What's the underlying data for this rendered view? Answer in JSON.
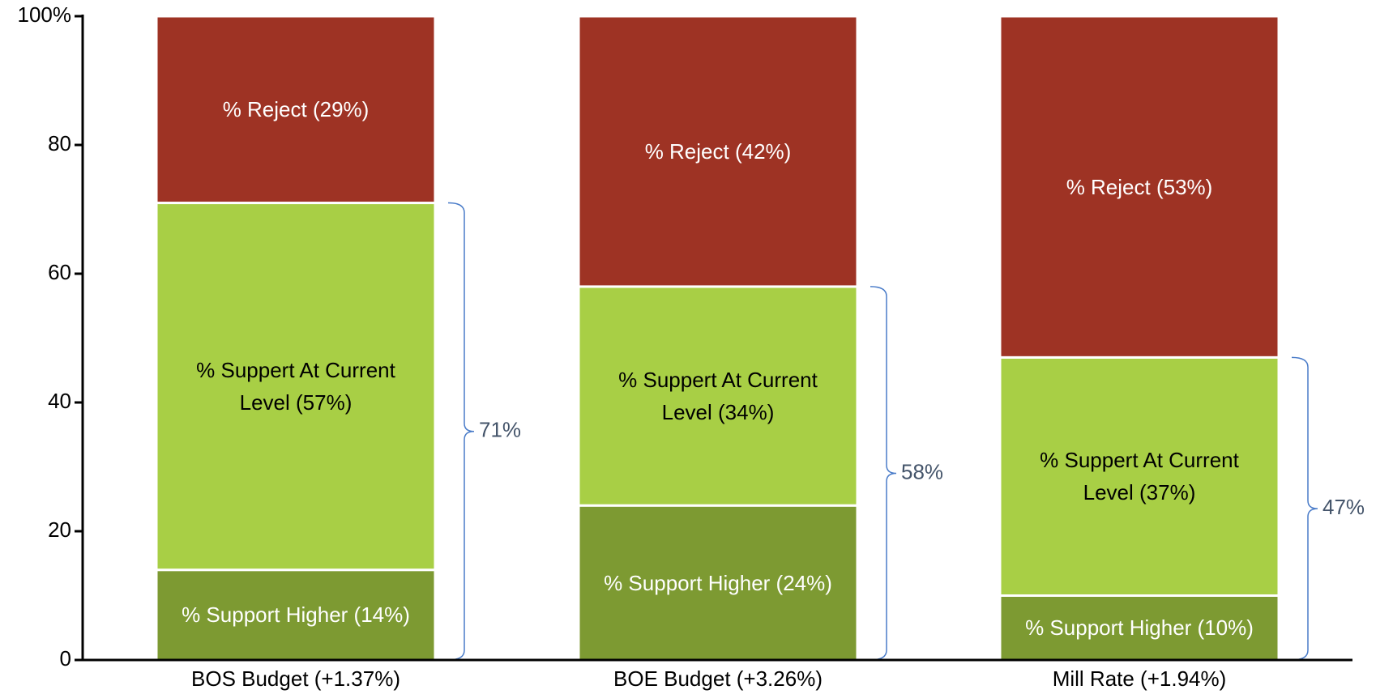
{
  "chart_data": {
    "type": "stacked_bar",
    "categories": [
      "BOS Budget (+1.37%)",
      "BOE Budget (+3.26%)",
      "Mill Rate (+1.94%)"
    ],
    "series": [
      {
        "color": "#7d9a32",
        "values": [
          14,
          24,
          10
        ],
        "value_labels": [
          "% Support Higher (14%)",
          "% Support Higher (24%)",
          "% Support Higher (10%)"
        ]
      },
      {
        "color": "#a8cf45",
        "values": [
          57,
          34,
          37
        ],
        "value_labels": [
          "% Suppert At Current Level (57%)",
          "% Suppert At Current Level (34%)",
          "% Suppert At Current Level (37%)"
        ]
      },
      {
        "color": "#9e3324",
        "values": [
          29,
          42,
          53
        ],
        "value_labels": [
          "% Reject (29%)",
          "% Reject (42%)",
          "% Reject (53%)"
        ]
      }
    ],
    "annotations": {
      "color": "#4a7cc9",
      "values": [
        71,
        58,
        47
      ],
      "value_labels": [
        "71%",
        "58%",
        "47%"
      ]
    },
    "ylim": [
      0,
      100
    ],
    "yticks": [
      0,
      20,
      40,
      60,
      80,
      {
        "value": 100,
        "label": "100%"
      }
    ]
  }
}
